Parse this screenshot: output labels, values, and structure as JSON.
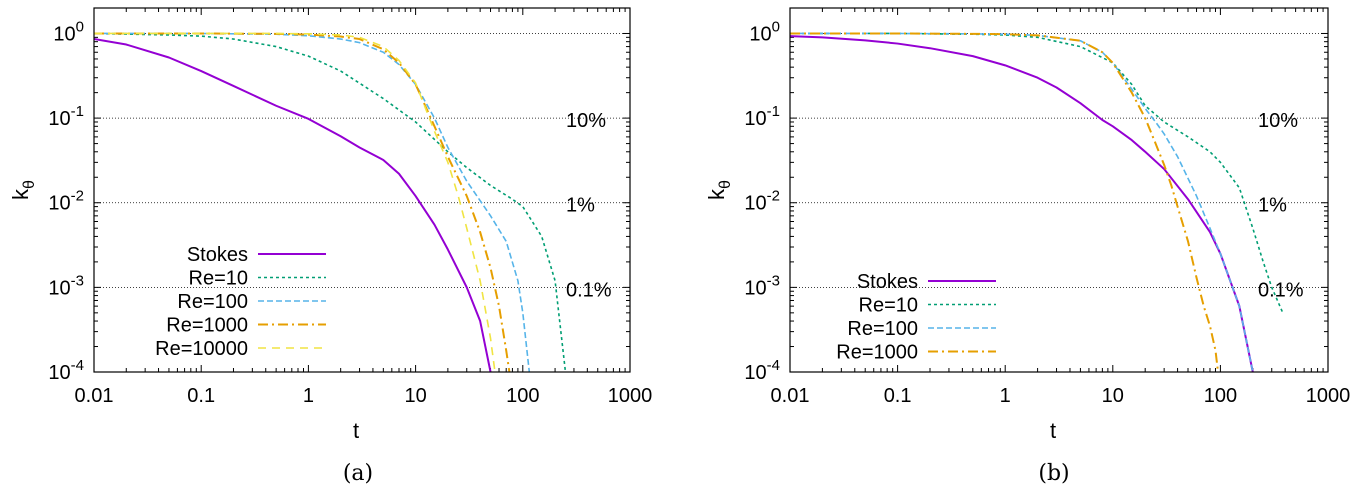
{
  "chart_data": [
    {
      "type": "line",
      "caption": "(a)",
      "xlabel": "t",
      "ylabel": "k",
      "ylabel_sub": "θ",
      "xscale": "log",
      "yscale": "log",
      "xlim": [
        0.01,
        1000
      ],
      "ylim": [
        0.0001,
        2
      ],
      "xticks": [
        "0.01",
        "0.1",
        "1",
        "10",
        "100",
        "1000"
      ],
      "yticks": [
        {
          "base": "10",
          "exp": "0"
        },
        {
          "base": "10",
          "exp": "-1"
        },
        {
          "base": "10",
          "exp": "-2"
        },
        {
          "base": "10",
          "exp": "-3"
        },
        {
          "base": "10",
          "exp": "-4"
        }
      ],
      "grid": "dotted horizontal lines at 10^-1, 10^-2, 10^-3",
      "reference_labels": [
        "10%",
        "1%",
        "0.1%"
      ],
      "legend_position": "bottom-left",
      "series": [
        {
          "name": "Stokes",
          "color": "#9400d3",
          "dash": "solid",
          "x": [
            0.01,
            0.02,
            0.05,
            0.1,
            0.2,
            0.5,
            1,
            2,
            3,
            5,
            7,
            10,
            15,
            20,
            30,
            40,
            50
          ],
          "y": [
            0.86,
            0.74,
            0.52,
            0.36,
            0.24,
            0.14,
            0.098,
            0.061,
            0.045,
            0.032,
            0.022,
            0.012,
            0.0055,
            0.0028,
            0.001,
            0.0004,
            0.0001
          ]
        },
        {
          "name": "Re=10",
          "color": "#009e73",
          "dash": "short",
          "x": [
            0.01,
            0.05,
            0.1,
            0.2,
            0.5,
            1,
            2,
            5,
            10,
            20,
            30,
            50,
            80,
            100,
            150,
            200,
            250
          ],
          "y": [
            1.0,
            0.96,
            0.93,
            0.86,
            0.7,
            0.54,
            0.36,
            0.17,
            0.09,
            0.04,
            0.026,
            0.016,
            0.011,
            0.009,
            0.004,
            0.0012,
            0.0001
          ]
        },
        {
          "name": "Re=100",
          "color": "#56b4e9",
          "dash": "dash",
          "x": [
            0.01,
            0.1,
            0.5,
            1,
            2,
            3,
            5,
            7,
            10,
            15,
            20,
            30,
            50,
            70,
            90,
            100,
            115
          ],
          "y": [
            1.0,
            1.0,
            0.98,
            0.94,
            0.86,
            0.78,
            0.6,
            0.43,
            0.25,
            0.1,
            0.045,
            0.018,
            0.007,
            0.0035,
            0.0012,
            0.0005,
            0.0001
          ]
        },
        {
          "name": "Re=1000",
          "color": "#e69f00",
          "dash": "dashdot",
          "x": [
            0.01,
            0.1,
            0.5,
            1,
            2,
            3,
            5,
            7,
            10,
            15,
            20,
            30,
            40,
            50,
            60,
            70,
            75
          ],
          "y": [
            1.0,
            1.0,
            0.99,
            0.97,
            0.92,
            0.86,
            0.65,
            0.45,
            0.25,
            0.08,
            0.035,
            0.012,
            0.0045,
            0.0017,
            0.0006,
            0.00018,
            0.0001
          ]
        },
        {
          "name": "Re=10000",
          "color": "#f0e442",
          "dash": "long",
          "x": [
            0.01,
            0.1,
            0.5,
            1,
            2,
            3,
            5,
            7,
            10,
            15,
            20,
            25,
            30,
            40,
            50,
            55
          ],
          "y": [
            1.0,
            1.0,
            1.0,
            0.99,
            0.96,
            0.9,
            0.7,
            0.48,
            0.26,
            0.07,
            0.03,
            0.012,
            0.005,
            0.0012,
            0.00025,
            0.0001
          ]
        }
      ]
    },
    {
      "type": "line",
      "caption": "(b)",
      "xlabel": "t",
      "ylabel": "k",
      "ylabel_sub": "θ",
      "xscale": "log",
      "yscale": "log",
      "xlim": [
        0.01,
        1000
      ],
      "ylim": [
        0.0001,
        2
      ],
      "xticks": [
        "0.01",
        "0.1",
        "1",
        "10",
        "100",
        "1000"
      ],
      "yticks": [
        {
          "base": "10",
          "exp": "0"
        },
        {
          "base": "10",
          "exp": "-1"
        },
        {
          "base": "10",
          "exp": "-2"
        },
        {
          "base": "10",
          "exp": "-3"
        },
        {
          "base": "10",
          "exp": "-4"
        }
      ],
      "grid": "dotted horizontal lines at 10^-1, 10^-2, 10^-3",
      "reference_labels": [
        "10%",
        "1%",
        "0.1%"
      ],
      "legend_position": "bottom-left",
      "series": [
        {
          "name": "Stokes",
          "color": "#9400d3",
          "dash": "solid",
          "x": [
            0.01,
            0.02,
            0.05,
            0.1,
            0.2,
            0.5,
            1,
            2,
            3,
            5,
            8,
            10,
            15,
            20,
            30,
            50,
            80,
            100,
            150,
            200
          ],
          "y": [
            0.93,
            0.9,
            0.83,
            0.76,
            0.67,
            0.54,
            0.42,
            0.3,
            0.23,
            0.15,
            0.095,
            0.08,
            0.055,
            0.04,
            0.025,
            0.011,
            0.0045,
            0.0025,
            0.0006,
            0.0001
          ]
        },
        {
          "name": "Re=10",
          "color": "#009e73",
          "dash": "short",
          "x": [
            0.01,
            0.1,
            0.5,
            1,
            2,
            5,
            10,
            15,
            20,
            30,
            50,
            80,
            100,
            150,
            200,
            250,
            300,
            380
          ],
          "y": [
            1.0,
            1.0,
            0.98,
            0.96,
            0.9,
            0.7,
            0.45,
            0.25,
            0.14,
            0.09,
            0.06,
            0.04,
            0.03,
            0.015,
            0.005,
            0.002,
            0.001,
            0.0005
          ]
        },
        {
          "name": "Re=100",
          "color": "#56b4e9",
          "dash": "dash",
          "x": [
            0.01,
            0.1,
            0.5,
            1,
            2,
            5,
            8,
            10,
            15,
            20,
            25,
            30,
            40,
            60,
            80,
            100,
            150,
            200
          ],
          "y": [
            1.0,
            1.0,
            0.99,
            0.98,
            0.95,
            0.82,
            0.6,
            0.45,
            0.22,
            0.13,
            0.09,
            0.065,
            0.035,
            0.012,
            0.005,
            0.0025,
            0.0006,
            0.0001
          ]
        },
        {
          "name": "Re=1000",
          "color": "#e69f00",
          "dash": "dashdot",
          "x": [
            0.01,
            0.1,
            0.5,
            1,
            2,
            5,
            8,
            10,
            15,
            20,
            25,
            30,
            35,
            40,
            50,
            60,
            70,
            80,
            90,
            95
          ],
          "y": [
            1.0,
            1.0,
            0.99,
            0.98,
            0.95,
            0.82,
            0.6,
            0.45,
            0.2,
            0.1,
            0.05,
            0.028,
            0.016,
            0.009,
            0.0035,
            0.0013,
            0.0006,
            0.00035,
            0.00018,
            0.0001
          ]
        }
      ]
    }
  ]
}
